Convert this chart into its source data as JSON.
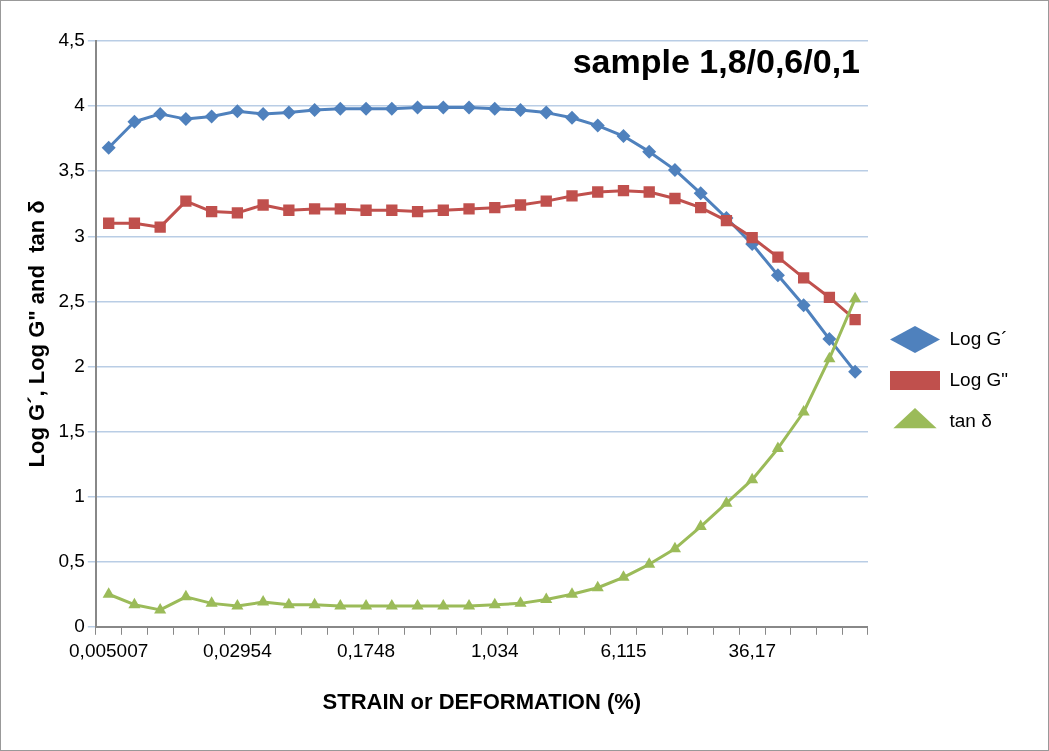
{
  "chart_data": {
    "type": "line",
    "title": "sample 1,8/0,6/0,1",
    "xlabel": "STRAIN or DEFORMATION (%)",
    "ylabel": "Log G´, Log G\" and  tan δ",
    "categories": [
      "0,005007",
      null,
      null,
      null,
      null,
      "0,02954",
      null,
      null,
      null,
      null,
      "0,1748",
      null,
      null,
      null,
      null,
      "1,034",
      null,
      null,
      null,
      null,
      "6,115",
      null,
      null,
      null,
      null,
      "36,17",
      null,
      null,
      null,
      null
    ],
    "series": [
      {
        "name": "Log G´",
        "color": "#4f81bd",
        "marker": "diamond",
        "values": [
          3.68,
          3.88,
          3.94,
          3.9,
          3.92,
          3.96,
          3.94,
          3.95,
          3.97,
          3.98,
          3.98,
          3.98,
          3.99,
          3.99,
          3.99,
          3.98,
          3.97,
          3.95,
          3.91,
          3.85,
          3.77,
          3.65,
          3.51,
          3.33,
          3.14,
          2.94,
          2.7,
          2.47,
          2.21,
          1.96
        ]
      },
      {
        "name": "Log G\"",
        "color": "#c0504d",
        "marker": "square",
        "values": [
          3.1,
          3.1,
          3.07,
          3.27,
          3.19,
          3.18,
          3.24,
          3.2,
          3.21,
          3.21,
          3.2,
          3.2,
          3.19,
          3.2,
          3.21,
          3.22,
          3.24,
          3.27,
          3.31,
          3.34,
          3.35,
          3.34,
          3.29,
          3.22,
          3.12,
          2.99,
          2.84,
          2.68,
          2.53,
          2.36
        ]
      },
      {
        "name": "tan δ",
        "color": "#9bbb59",
        "marker": "triangle",
        "values": [
          0.25,
          0.17,
          0.13,
          0.23,
          0.18,
          0.16,
          0.19,
          0.17,
          0.17,
          0.16,
          0.16,
          0.16,
          0.16,
          0.16,
          0.16,
          0.17,
          0.18,
          0.21,
          0.25,
          0.3,
          0.38,
          0.48,
          0.6,
          0.77,
          0.95,
          1.13,
          1.37,
          1.65,
          2.06,
          2.52
        ]
      }
    ],
    "ylim": [
      0,
      4.5
    ],
    "yticks": [
      0,
      {
        "value": 0.5,
        "label": "0,5"
      },
      1,
      {
        "value": 1.5,
        "label": "1,5"
      },
      2,
      {
        "value": 2.5,
        "label": "2,5"
      },
      3,
      {
        "value": 3.5,
        "label": "3,5"
      },
      4,
      {
        "value": 4.5,
        "label": "4,5"
      }
    ],
    "grid": "y",
    "legend": "right"
  }
}
